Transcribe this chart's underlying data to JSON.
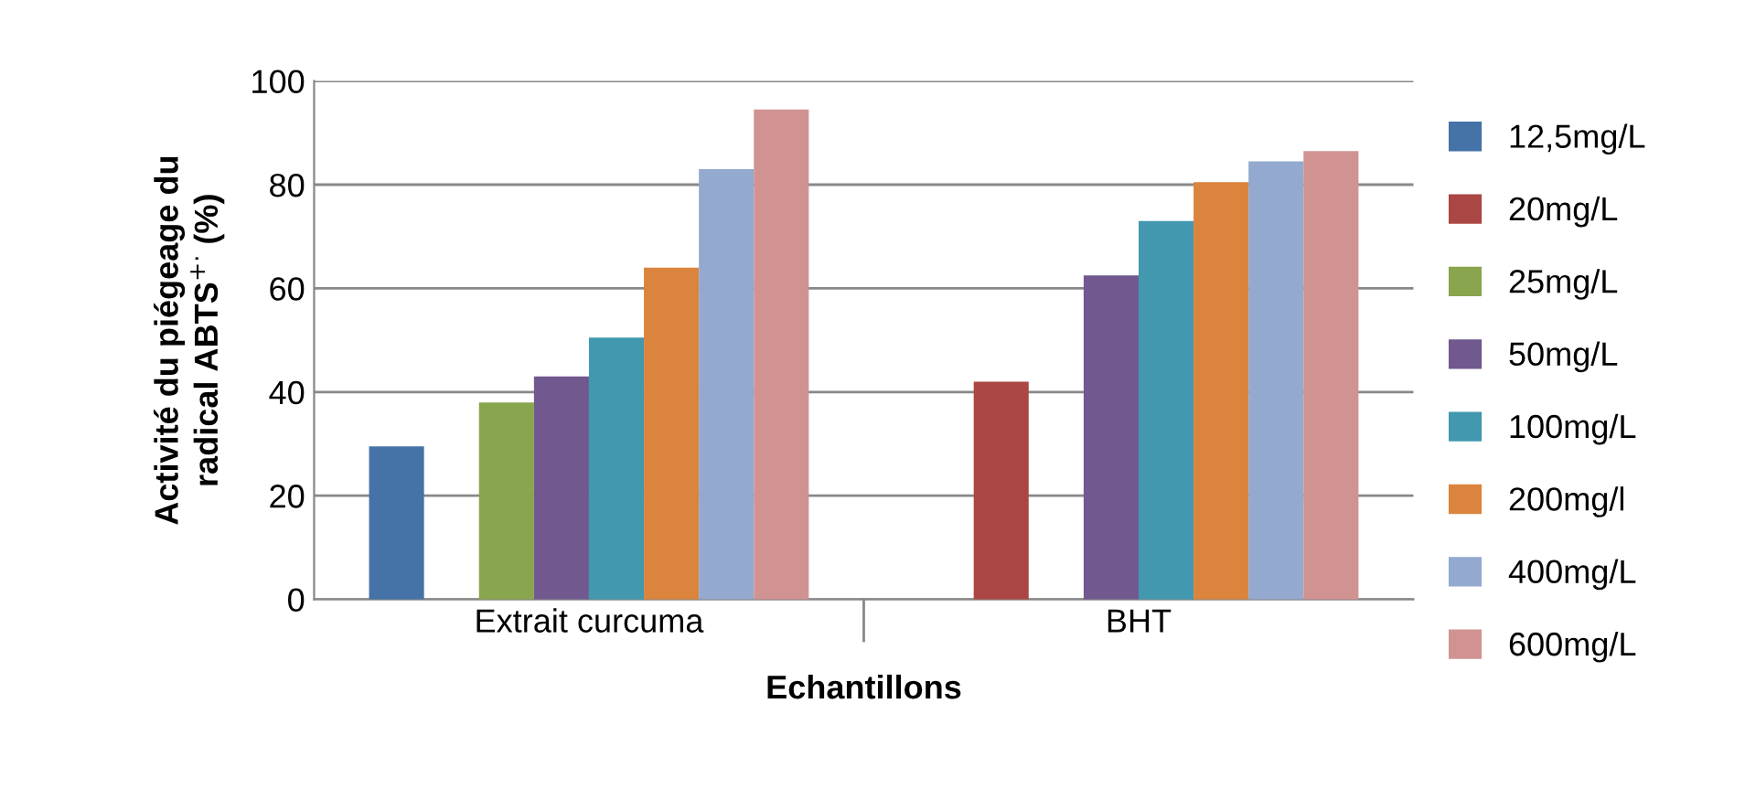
{
  "chart_data": {
    "type": "bar",
    "xlabel": "Echantillons",
    "ylabel": "Activité du piégeage du\nradical ABTS$^{+·}$ (%)",
    "categories": [
      "Extrait curcuma",
      "BHT"
    ],
    "series": [
      {
        "name": "12,5mg/L",
        "color": "#4572a7",
        "values": [
          29.5,
          null
        ]
      },
      {
        "name": "20mg/L",
        "color": "#aa4643",
        "values": [
          null,
          42
        ]
      },
      {
        "name": "25mg/L",
        "color": "#89a54e",
        "values": [
          38,
          null
        ]
      },
      {
        "name": "50mg/L",
        "color": "#71588f",
        "values": [
          43,
          62.5
        ]
      },
      {
        "name": "100mg/L",
        "color": "#4198af",
        "values": [
          50.5,
          73
        ]
      },
      {
        "name": "200mg/l",
        "color": "#db843d",
        "values": [
          64,
          80.5
        ]
      },
      {
        "name": "400mg/L",
        "color": "#93a9cf",
        "values": [
          83,
          84.5
        ]
      },
      {
        "name": "600mg/L",
        "color": "#d19392",
        "values": [
          94.5,
          86.5
        ]
      }
    ],
    "ylim": [
      0,
      100
    ],
    "yticks": [
      0,
      20,
      40,
      60,
      80,
      100
    ],
    "grid": "y",
    "legend": "right"
  }
}
